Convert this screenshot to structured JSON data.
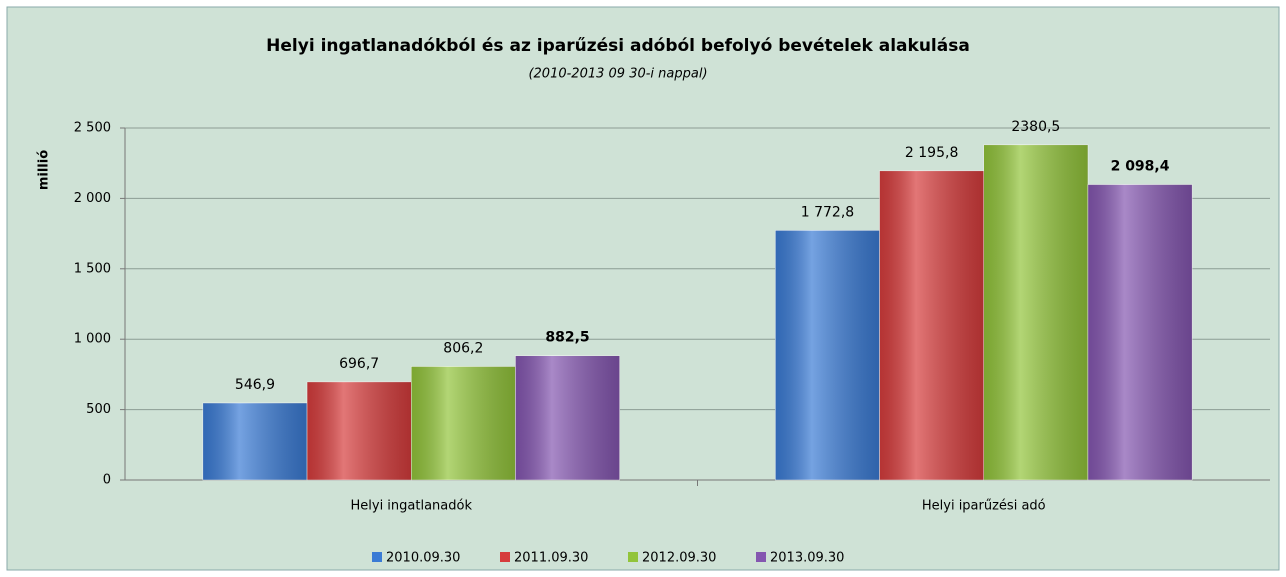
{
  "chart_data": {
    "type": "bar",
    "title": "Helyi ingatlanadókból és az iparűzési adóból befolyó bevételek alakulása",
    "subtitle": "(2010-2013 09 30-i nappal)",
    "y_label": "millió",
    "categories": [
      "Helyi ingatlanadók",
      "Helyi iparűzési adó"
    ],
    "series": [
      {
        "name": "2010.09.30",
        "color": "#3a7bd5",
        "values": [
          546.9,
          1772.8
        ],
        "value_labels": [
          "546,9",
          "1 772,8"
        ]
      },
      {
        "name": "2011.09.30",
        "color": "#d63c3c",
        "values": [
          696.7,
          2195.8
        ],
        "value_labels": [
          "696,7",
          "2 195,8"
        ]
      },
      {
        "name": "2012.09.30",
        "color": "#92c43a",
        "values": [
          806.2,
          2380.5
        ],
        "value_labels": [
          "806,2",
          "2380,5"
        ]
      },
      {
        "name": "2013.09.30",
        "color": "#8456b0",
        "values": [
          882.5,
          2098.4
        ],
        "value_labels": [
          "882,5",
          "2 098,4"
        ]
      }
    ],
    "ylim": [
      0,
      2500
    ],
    "yticks": [
      0,
      500,
      {
        "value": 1000,
        "label": "1 000"
      },
      {
        "value": 1500,
        "label": "1 500"
      },
      {
        "value": 2000,
        "label": "2 000"
      },
      {
        "value": 2500,
        "label": "2 500"
      }
    ],
    "grid": true,
    "legend": "bottom"
  }
}
